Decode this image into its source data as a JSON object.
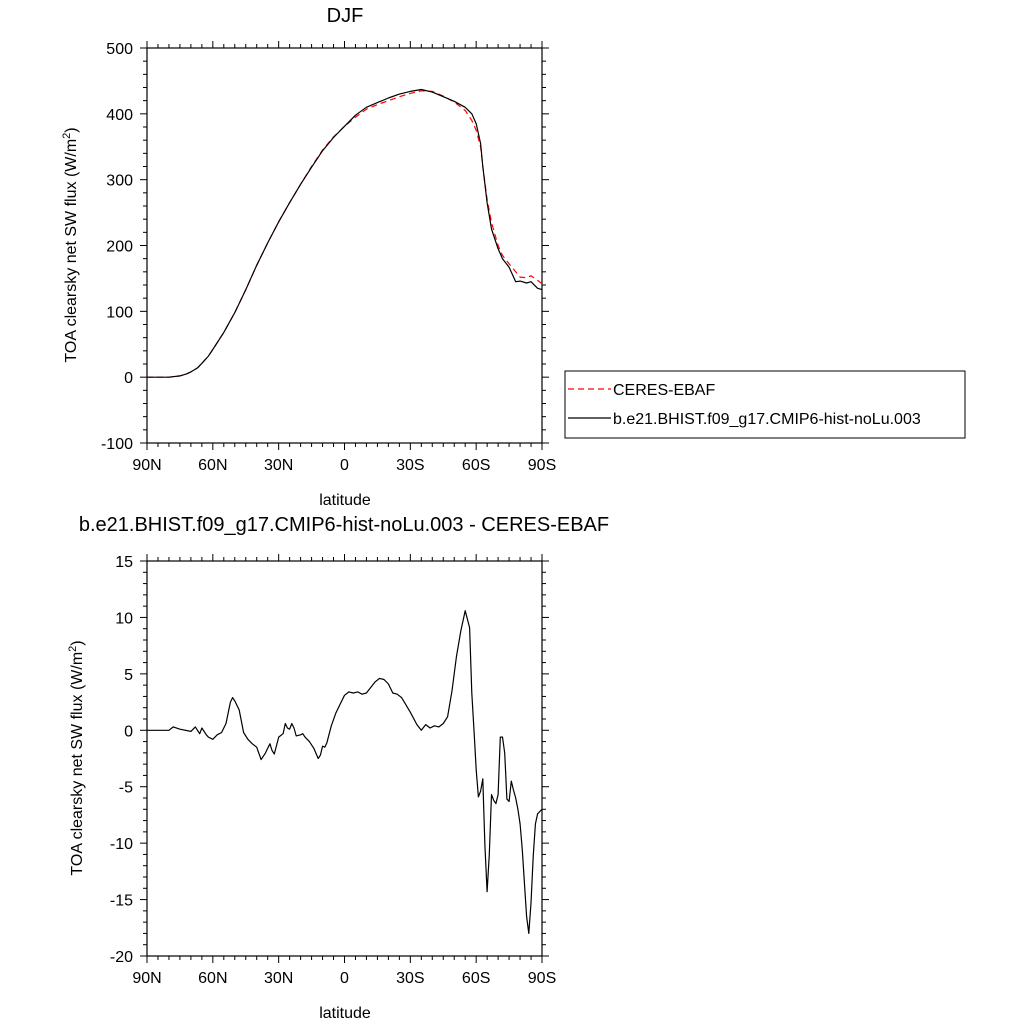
{
  "chart_data": [
    {
      "type": "line",
      "title": "DJF",
      "xlabel": "latitude",
      "ylabel_main": "TOA clearsky net SW flux (W/m",
      "ylabel_sup": "2",
      "ylabel_close": ")",
      "xlim": [
        90,
        -90
      ],
      "ylim": [
        -100,
        500
      ],
      "xticks": [
        {
          "value": 90,
          "label": "90N"
        },
        {
          "value": 60,
          "label": "60N"
        },
        {
          "value": 30,
          "label": "30N"
        },
        {
          "value": 0,
          "label": "0"
        },
        {
          "value": -30,
          "label": "30S"
        },
        {
          "value": -60,
          "label": "60S"
        },
        {
          "value": -90,
          "label": "90S"
        }
      ],
      "yticks": [
        {
          "value": 500,
          "label": "500"
        },
        {
          "value": 400,
          "label": "400"
        },
        {
          "value": 300,
          "label": "300"
        },
        {
          "value": 200,
          "label": "200"
        },
        {
          "value": 100,
          "label": "100"
        },
        {
          "value": 0,
          "label": "0"
        },
        {
          "value": -100,
          "label": "-100"
        }
      ],
      "legend": {
        "placement": "right"
      },
      "series": [
        {
          "name": "CERES-EBAF",
          "color": "#ff0000",
          "dashed": true,
          "x": [
            90,
            85,
            80,
            75,
            72,
            70,
            67,
            65,
            62,
            60,
            55,
            50,
            45,
            40,
            35,
            30,
            25,
            20,
            15,
            10,
            5,
            0,
            -5,
            -10,
            -15,
            -20,
            -25,
            -30,
            -35,
            -40,
            -45,
            -50,
            -55,
            -58,
            -60,
            -62,
            -63,
            -65,
            -67,
            -70,
            -72,
            -75,
            -78,
            -80,
            -83,
            -85,
            -88,
            -90
          ],
          "y": [
            0,
            0,
            0,
            2,
            5,
            8,
            14,
            21,
            32,
            42,
            68,
            98,
            133,
            170,
            204,
            236,
            265,
            293,
            320,
            345,
            365,
            381,
            395,
            407,
            414,
            420,
            426,
            431,
            435,
            434,
            427,
            418,
            405,
            390,
            375,
            350,
            320,
            270,
            235,
            200,
            185,
            172,
            160,
            152,
            151,
            154,
            147,
            142
          ]
        },
        {
          "name": "b.e21.BHIST.f09_g17.CMIP6-hist-noLu.003",
          "color": "#000000",
          "dashed": false,
          "x": [
            90,
            85,
            80,
            75,
            72,
            70,
            67,
            65,
            62,
            60,
            55,
            50,
            45,
            40,
            35,
            30,
            25,
            20,
            15,
            10,
            5,
            0,
            -5,
            -10,
            -15,
            -20,
            -25,
            -30,
            -35,
            -40,
            -45,
            -50,
            -55,
            -58,
            -60,
            -62,
            -63,
            -65,
            -67,
            -70,
            -72,
            -75,
            -78,
            -80,
            -83,
            -85,
            -88,
            -90
          ],
          "y": [
            0,
            0,
            0,
            2,
            5,
            8,
            14,
            21,
            32,
            42,
            68,
            98,
            133,
            170,
            204,
            236,
            265,
            293,
            319,
            344,
            364,
            381,
            398,
            410,
            417,
            424,
            430,
            434,
            437,
            433,
            426,
            419,
            410,
            400,
            385,
            355,
            320,
            265,
            225,
            195,
            180,
            167,
            145,
            146,
            143,
            145,
            135,
            133
          ]
        }
      ]
    },
    {
      "type": "line",
      "title": "b.e21.BHIST.f09_g17.CMIP6-hist-noLu.003 - CERES-EBAF",
      "xlabel": "latitude",
      "ylabel_main": "TOA clearsky net SW flux (W/m",
      "ylabel_sup": "2",
      "ylabel_close": ")",
      "xlim": [
        90,
        -90
      ],
      "ylim": [
        -20,
        15
      ],
      "xticks": [
        {
          "value": 90,
          "label": "90N"
        },
        {
          "value": 60,
          "label": "60N"
        },
        {
          "value": 30,
          "label": "30N"
        },
        {
          "value": 0,
          "label": "0"
        },
        {
          "value": -30,
          "label": "30S"
        },
        {
          "value": -60,
          "label": "60S"
        },
        {
          "value": -90,
          "label": "90S"
        }
      ],
      "yticks": [
        {
          "value": 15,
          "label": "15"
        },
        {
          "value": 10,
          "label": "10"
        },
        {
          "value": 5,
          "label": "5"
        },
        {
          "value": 0,
          "label": "0"
        },
        {
          "value": -5,
          "label": "-5"
        },
        {
          "value": -10,
          "label": "-10"
        },
        {
          "value": -15,
          "label": "-15"
        },
        {
          "value": -20,
          "label": "-20"
        }
      ],
      "series": [
        {
          "color": "#000000",
          "dashed": false,
          "x": [
            90,
            80,
            78,
            75,
            70,
            68,
            66,
            65,
            63,
            62,
            60,
            58,
            56,
            54,
            52,
            51,
            50,
            48,
            46,
            44,
            42,
            40,
            38,
            36,
            35,
            34,
            33,
            32,
            30,
            28,
            27,
            26,
            25,
            24,
            23,
            22,
            20,
            19,
            18,
            16,
            14,
            12,
            11,
            10,
            9,
            8,
            6,
            4,
            2,
            0,
            -2,
            -4,
            -6,
            -8,
            -10,
            -12,
            -14,
            -16,
            -18,
            -20,
            -22,
            -24,
            -26,
            -30,
            -33,
            -35,
            -37,
            -39,
            -41,
            -43,
            -45,
            -47,
            -49,
            -51,
            -53,
            -55,
            -57,
            -58,
            -59,
            -60,
            -61,
            -62,
            -63,
            -64,
            -65,
            -66,
            -67,
            -68,
            -69,
            -70,
            -71,
            -72,
            -73,
            -74,
            -75,
            -76,
            -77,
            -78,
            -79,
            -80,
            -81,
            -82,
            -83,
            -84,
            -85,
            -86,
            -87,
            -88,
            -89,
            -90
          ],
          "y": [
            0,
            0,
            0.3,
            0.1,
            -0.1,
            0.3,
            -0.3,
            0.2,
            -0.4,
            -0.6,
            -0.8,
            -0.4,
            -0.2,
            0.6,
            2.5,
            2.9,
            2.6,
            1.8,
            -0.2,
            -0.8,
            -1.2,
            -1.5,
            -2.6,
            -2.0,
            -1.6,
            -1.2,
            -1.8,
            -2.1,
            -0.6,
            -0.3,
            0.6,
            0.2,
            0.1,
            0.6,
            0.2,
            -0.5,
            -0.4,
            -0.3,
            -0.6,
            -1.0,
            -1.6,
            -2.5,
            -2.2,
            -1.4,
            -1.5,
            -1.1,
            0.4,
            1.5,
            2.3,
            3.1,
            3.4,
            3.3,
            3.4,
            3.2,
            3.3,
            3.8,
            4.3,
            4.6,
            4.5,
            4.1,
            3.3,
            3.2,
            2.9,
            1.6,
            0.5,
            0,
            0.5,
            0.2,
            0.4,
            0.3,
            0.6,
            1.2,
            3.5,
            6.5,
            8.8,
            10.6,
            9.1,
            3.3,
            0,
            -3.5,
            -5.9,
            -5.4,
            -4.3,
            -10.2,
            -14.3,
            -11.0,
            -5.7,
            -6.2,
            -6.5,
            -5.7,
            -0.6,
            -0.6,
            -2.0,
            -6.1,
            -6.3,
            -4.5,
            -5.3,
            -6.0,
            -7.0,
            -8.3,
            -10.6,
            -13.5,
            -16.5,
            -18.0,
            -15.3,
            -11.2,
            -8.3,
            -7.4,
            -7.2,
            -7.0
          ]
        }
      ]
    }
  ]
}
